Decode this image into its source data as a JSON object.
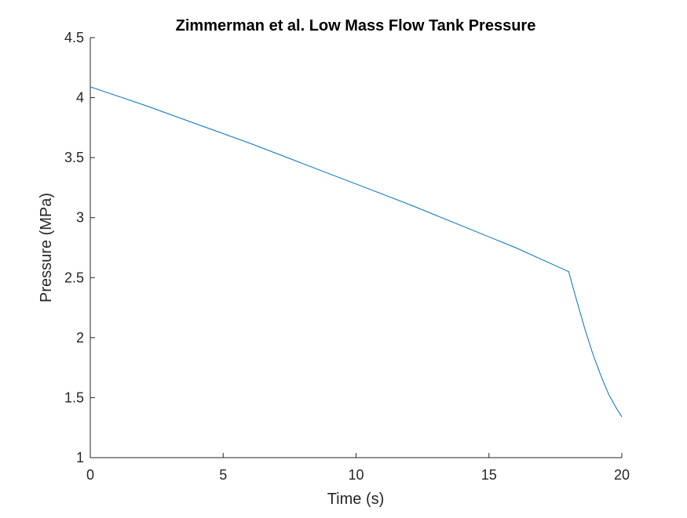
{
  "colors": {
    "series": "#0072BD",
    "axis": "#262626",
    "background": "#ffffff"
  },
  "chart_data": {
    "type": "line",
    "title": "Zimmerman et al. Low Mass Flow Tank Pressure",
    "xlabel": "Time (s)",
    "ylabel": "Pressure (MPa)",
    "xlim": [
      0,
      20
    ],
    "ylim": [
      1,
      4.5
    ],
    "xticks": [
      0,
      5,
      10,
      15,
      20
    ],
    "xtick_labels": [
      "0",
      "5",
      "10",
      "15",
      "20"
    ],
    "yticks": [
      1,
      1.5,
      2,
      2.5,
      3,
      3.5,
      4,
      4.5
    ],
    "ytick_labels": [
      "1",
      "1.5",
      "2",
      "2.5",
      "3",
      "3.5",
      "4",
      "4.5"
    ],
    "grid": false,
    "legend": "none",
    "series": [
      {
        "x": [
          0,
          2,
          4,
          6,
          8,
          10,
          12,
          14,
          16,
          17,
          17.9,
          18,
          18.3,
          18.6,
          18.9,
          19.2,
          19.5,
          19.8,
          20
        ],
        "y": [
          4.09,
          3.94,
          3.78,
          3.62,
          3.45,
          3.28,
          3.11,
          2.93,
          2.75,
          2.65,
          2.56,
          2.55,
          2.31,
          2.08,
          1.87,
          1.69,
          1.53,
          1.41,
          1.34
        ]
      }
    ]
  }
}
